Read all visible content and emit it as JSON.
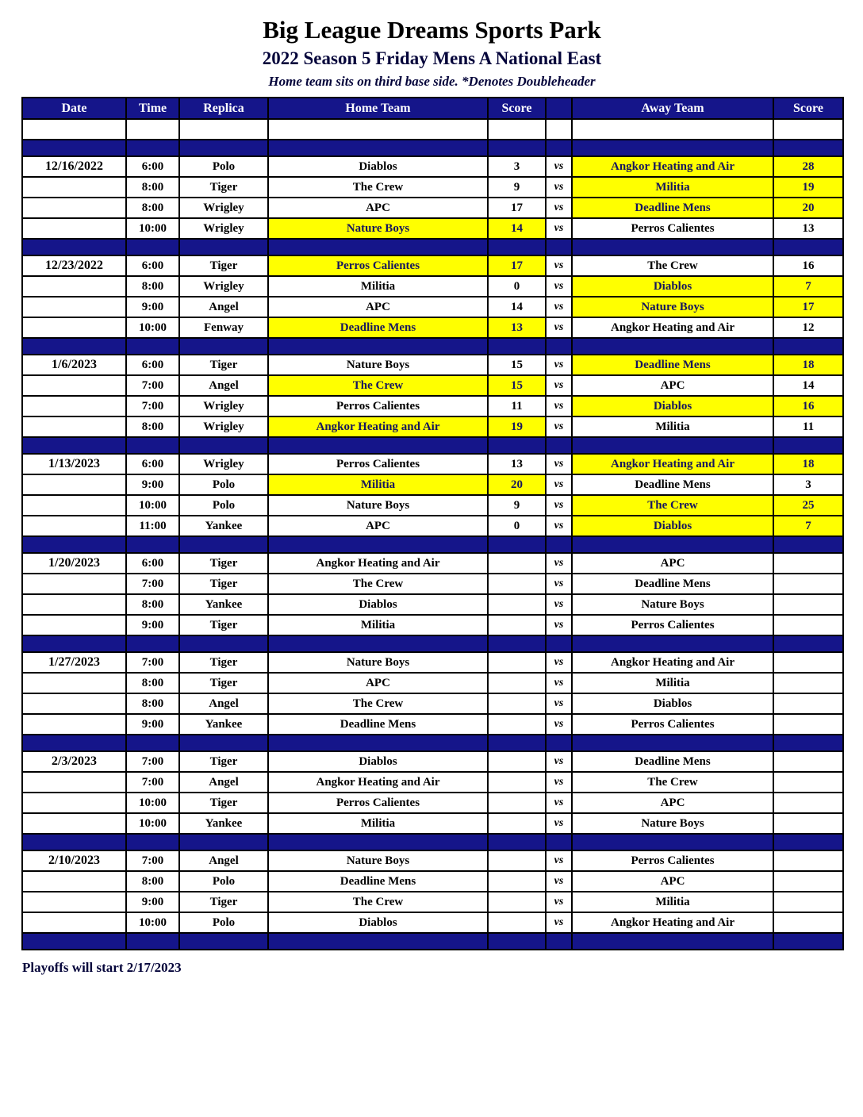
{
  "header": {
    "title": "Big League Dreams Sports Park",
    "subtitle": "2022 Season 5 Friday Mens A National East",
    "note": "Home team sits on third base side.  *Denotes Doubleheader"
  },
  "table": {
    "columns": [
      "Date",
      "Time",
      "Replica",
      "Home Team",
      "Score",
      "",
      "Away Team",
      "Score"
    ],
    "vs_label": "vs"
  },
  "groups": [
    {
      "date": "12/16/2022",
      "games": [
        {
          "time": "6:00",
          "replica": "Polo",
          "home": "Diablos",
          "home_score": "3",
          "away": "Angkor Heating and Air",
          "away_score": "28",
          "winner": "away"
        },
        {
          "time": "8:00",
          "replica": "Tiger",
          "home": "The Crew",
          "home_score": "9",
          "away": "Militia",
          "away_score": "19",
          "winner": "away"
        },
        {
          "time": "8:00",
          "replica": "Wrigley",
          "home": "APC",
          "home_score": "17",
          "away": "Deadline Mens",
          "away_score": "20",
          "winner": "away"
        },
        {
          "time": "10:00",
          "replica": "Wrigley",
          "home": "Nature Boys",
          "home_score": "14",
          "away": "Perros Calientes",
          "away_score": "13",
          "winner": "home"
        }
      ]
    },
    {
      "date": "12/23/2022",
      "games": [
        {
          "time": "6:00",
          "replica": "Tiger",
          "home": "Perros Calientes",
          "home_score": "17",
          "away": "The Crew",
          "away_score": "16",
          "winner": "home"
        },
        {
          "time": "8:00",
          "replica": "Wrigley",
          "home": "Militia",
          "home_score": "0",
          "away": "Diablos",
          "away_score": "7",
          "winner": "away"
        },
        {
          "time": "9:00",
          "replica": "Angel",
          "home": "APC",
          "home_score": "14",
          "away": "Nature Boys",
          "away_score": "17",
          "winner": "away"
        },
        {
          "time": "10:00",
          "replica": "Fenway",
          "home": "Deadline Mens",
          "home_score": "13",
          "away": "Angkor Heating and Air",
          "away_score": "12",
          "winner": "home"
        }
      ]
    },
    {
      "date": "1/6/2023",
      "games": [
        {
          "time": "6:00",
          "replica": "Tiger",
          "home": "Nature Boys",
          "home_score": "15",
          "away": "Deadline Mens",
          "away_score": "18",
          "winner": "away"
        },
        {
          "time": "7:00",
          "replica": "Angel",
          "home": "The Crew",
          "home_score": "15",
          "away": "APC",
          "away_score": "14",
          "winner": "home"
        },
        {
          "time": "7:00",
          "replica": "Wrigley",
          "home": "Perros Calientes",
          "home_score": "11",
          "away": "Diablos",
          "away_score": "16",
          "winner": "away"
        },
        {
          "time": "8:00",
          "replica": "Wrigley",
          "home": "Angkor Heating and Air",
          "home_score": "19",
          "away": "Militia",
          "away_score": "11",
          "winner": "home"
        }
      ]
    },
    {
      "date": "1/13/2023",
      "games": [
        {
          "time": "6:00",
          "replica": "Wrigley",
          "home": "Perros Calientes",
          "home_score": "13",
          "away": "Angkor Heating and Air",
          "away_score": "18",
          "winner": "away"
        },
        {
          "time": "9:00",
          "replica": "Polo",
          "home": "Militia",
          "home_score": "20",
          "away": "Deadline Mens",
          "away_score": "3",
          "winner": "home"
        },
        {
          "time": "10:00",
          "replica": "Polo",
          "home": "Nature Boys",
          "home_score": "9",
          "away": "The Crew",
          "away_score": "25",
          "winner": "away"
        },
        {
          "time": "11:00",
          "replica": "Yankee",
          "home": "APC",
          "home_score": "0",
          "away": "Diablos",
          "away_score": "7",
          "winner": "away"
        }
      ]
    },
    {
      "date": "1/20/2023",
      "games": [
        {
          "time": "6:00",
          "replica": "Tiger",
          "home": "Angkor Heating and Air",
          "home_score": "",
          "away": "APC",
          "away_score": "",
          "winner": ""
        },
        {
          "time": "7:00",
          "replica": "Tiger",
          "home": "The Crew",
          "home_score": "",
          "away": "Deadline Mens",
          "away_score": "",
          "winner": ""
        },
        {
          "time": "8:00",
          "replica": "Yankee",
          "home": "Diablos",
          "home_score": "",
          "away": "Nature Boys",
          "away_score": "",
          "winner": ""
        },
        {
          "time": "9:00",
          "replica": "Tiger",
          "home": "Militia",
          "home_score": "",
          "away": "Perros Calientes",
          "away_score": "",
          "winner": ""
        }
      ]
    },
    {
      "date": "1/27/2023",
      "games": [
        {
          "time": "7:00",
          "replica": "Tiger",
          "home": "Nature Boys",
          "home_score": "",
          "away": "Angkor Heating and Air",
          "away_score": "",
          "winner": ""
        },
        {
          "time": "8:00",
          "replica": "Tiger",
          "home": "APC",
          "home_score": "",
          "away": "Militia",
          "away_score": "",
          "winner": ""
        },
        {
          "time": "8:00",
          "replica": "Angel",
          "home": "The Crew",
          "home_score": "",
          "away": "Diablos",
          "away_score": "",
          "winner": ""
        },
        {
          "time": "9:00",
          "replica": "Yankee",
          "home": "Deadline Mens",
          "home_score": "",
          "away": "Perros Calientes",
          "away_score": "",
          "winner": ""
        }
      ]
    },
    {
      "date": "2/3/2023",
      "games": [
        {
          "time": "7:00",
          "replica": "Tiger",
          "home": "Diablos",
          "home_score": "",
          "away": "Deadline Mens",
          "away_score": "",
          "winner": ""
        },
        {
          "time": "7:00",
          "replica": "Angel",
          "home": "Angkor Heating and Air",
          "home_score": "",
          "away": "The Crew",
          "away_score": "",
          "winner": ""
        },
        {
          "time": "10:00",
          "replica": "Tiger",
          "home": "Perros Calientes",
          "home_score": "",
          "away": "APC",
          "away_score": "",
          "winner": ""
        },
        {
          "time": "10:00",
          "replica": "Yankee",
          "home": "Militia",
          "home_score": "",
          "away": "Nature Boys",
          "away_score": "",
          "winner": ""
        }
      ]
    },
    {
      "date": "2/10/2023",
      "games": [
        {
          "time": "7:00",
          "replica": "Angel",
          "home": "Nature Boys",
          "home_score": "",
          "away": "Perros Calientes",
          "away_score": "",
          "winner": ""
        },
        {
          "time": "8:00",
          "replica": "Polo",
          "home": "Deadline Mens",
          "home_score": "",
          "away": "APC",
          "away_score": "",
          "winner": ""
        },
        {
          "time": "9:00",
          "replica": "Tiger",
          "home": "The Crew",
          "home_score": "",
          "away": "Militia",
          "away_score": "",
          "winner": ""
        },
        {
          "time": "10:00",
          "replica": "Polo",
          "home": "Diablos",
          "home_score": "",
          "away": "Angkor Heating and Air",
          "away_score": "",
          "winner": ""
        }
      ]
    }
  ],
  "footer": {
    "note": "Playoffs will start 2/17/2023"
  },
  "colors": {
    "navy": "#15158a",
    "highlight": "#ffff00"
  }
}
